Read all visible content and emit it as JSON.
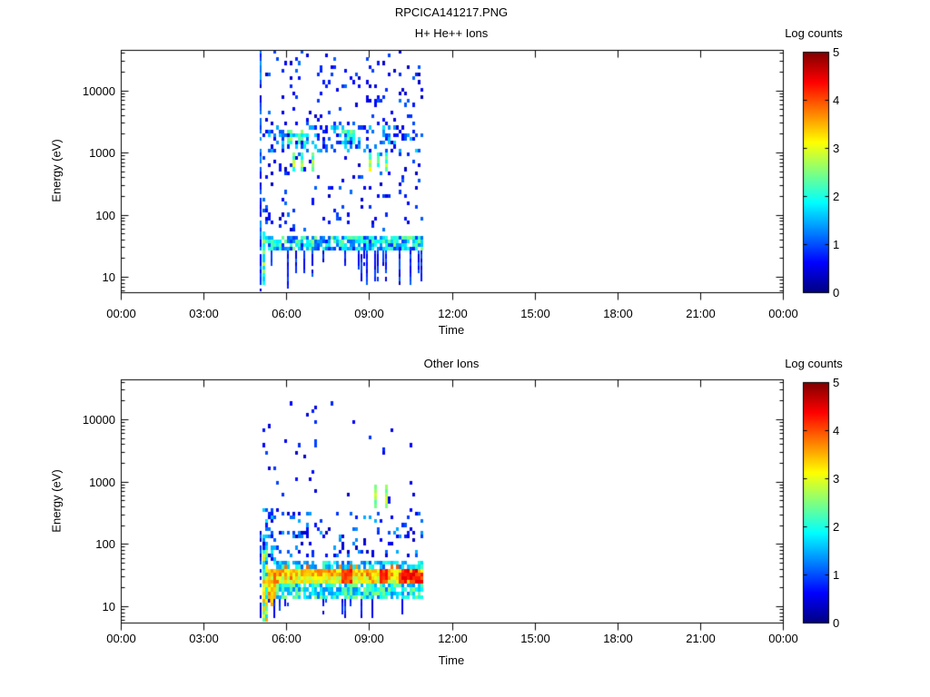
{
  "window_title": "RPCICA141217.PNG",
  "colors": {
    "background": "#ffffff",
    "axis": "#000000",
    "text": "#000000"
  },
  "chart_data": [
    {
      "type": "heatmap",
      "subtype": "energy-time-spectrogram",
      "title": "H+ He++ Ions",
      "xlabel": "Time",
      "ylabel": "Energy (eV)",
      "x_tick_labels": [
        "00:00",
        "03:00",
        "06:00",
        "09:00",
        "12:00",
        "15:00",
        "18:00",
        "21:00",
        "00:00"
      ],
      "x_range_hours": [
        0,
        24
      ],
      "y_scale": "log",
      "y_tick_values": [
        10,
        100,
        1000,
        10000
      ],
      "y_tick_labels": [
        "10",
        "100",
        "1000",
        "10000"
      ],
      "ylog_range": [
        0.75,
        4.65
      ],
      "grid": false,
      "colorbar": {
        "label": "Log counts",
        "tick_labels": [
          "0",
          "1",
          "2",
          "3",
          "4",
          "5"
        ],
        "range": [
          0,
          5
        ],
        "colormap": "jet",
        "position": "right"
      },
      "data_time_extent_hours": [
        5.0,
        10.9
      ],
      "regions": [
        {
          "name": "start-line",
          "type": "vline",
          "t": [
            5.0,
            5.08
          ],
          "logE": [
            0.78,
            4.62
          ],
          "density": 0.8,
          "counts": [
            0.3,
            1.4
          ],
          "w": 2
        },
        {
          "name": "high-scatter",
          "t": [
            5.05,
            10.9
          ],
          "logE": [
            1.7,
            4.62
          ],
          "density": 0.085,
          "counts": [
            0.3,
            1.2
          ]
        },
        {
          "name": "keV-band",
          "t": [
            5.1,
            10.9
          ],
          "logE": [
            3.02,
            3.42
          ],
          "density": 0.3,
          "counts": [
            0.5,
            1.8
          ]
        },
        {
          "name": "keV-bright-1",
          "t": [
            6.0,
            6.7
          ],
          "logE": [
            3.1,
            3.35
          ],
          "density": 0.55,
          "counts": [
            1.6,
            2.8
          ]
        },
        {
          "name": "keV-bright-2",
          "t": [
            7.9,
            8.45
          ],
          "logE": [
            3.1,
            3.35
          ],
          "density": 0.55,
          "counts": [
            1.4,
            2.6
          ]
        },
        {
          "name": "streaks-700eV",
          "type": "columns",
          "times": [
            6.2,
            6.55,
            6.95,
            9.0,
            9.3,
            9.55
          ],
          "logE": [
            2.72,
            3.0
          ],
          "density": 0.95,
          "counts": [
            1.8,
            3.2
          ]
        },
        {
          "name": "low-band",
          "t": [
            5.05,
            10.9
          ],
          "logE": [
            1.4,
            1.68
          ],
          "density": 0.85,
          "counts": [
            0.7,
            2.6
          ]
        },
        {
          "name": "below-band-streaks",
          "type": "vstreaks",
          "n": 22,
          "t": [
            5.1,
            10.9
          ],
          "logE": [
            0.78,
            1.4
          ],
          "density": 0.9,
          "counts": [
            0.3,
            1.1
          ]
        },
        {
          "name": "start-cyan",
          "type": "columns",
          "times": [
            5.1,
            5.18
          ],
          "logE": [
            0.9,
            1.75
          ],
          "density": 0.95,
          "counts": [
            1.6,
            2.9
          ]
        }
      ]
    },
    {
      "type": "heatmap",
      "subtype": "energy-time-spectrogram",
      "title": "Other Ions",
      "xlabel": "Time",
      "ylabel": "Energy (eV)",
      "x_tick_labels": [
        "00:00",
        "03:00",
        "06:00",
        "09:00",
        "12:00",
        "15:00",
        "18:00",
        "21:00",
        "00:00"
      ],
      "x_range_hours": [
        0,
        24
      ],
      "y_scale": "log",
      "y_tick_values": [
        10,
        100,
        1000,
        10000
      ],
      "y_tick_labels": [
        "10",
        "100",
        "1000",
        "10000"
      ],
      "ylog_range": [
        0.75,
        4.65
      ],
      "grid": false,
      "colorbar": {
        "label": "Log counts",
        "tick_labels": [
          "0",
          "1",
          "2",
          "3",
          "4",
          "5"
        ],
        "range": [
          0,
          5
        ],
        "colormap": "jet",
        "position": "right"
      },
      "data_time_extent_hours": [
        5.0,
        10.9
      ],
      "regions": [
        {
          "name": "start-line",
          "type": "vline",
          "t": [
            5.0,
            5.08
          ],
          "logE": [
            0.78,
            2.3
          ],
          "density": 0.75,
          "counts": [
            0.3,
            1.2
          ],
          "w": 2
        },
        {
          "name": "high-sparse-early",
          "t": [
            5.05,
            7.2
          ],
          "logE": [
            2.5,
            4.35
          ],
          "density": 0.035,
          "counts": [
            0.3,
            1.0
          ]
        },
        {
          "name": "high-sparse-late",
          "t": [
            7.2,
            10.6
          ],
          "logE": [
            2.5,
            4.3
          ],
          "density": 0.012,
          "counts": [
            0.3,
            1.0
          ]
        },
        {
          "name": "mid-scatter",
          "t": [
            5.1,
            10.9
          ],
          "logE": [
            1.78,
            2.5
          ],
          "density": 0.17,
          "counts": [
            0.3,
            1.5
          ]
        },
        {
          "name": "upper-col-start",
          "t": [
            5.05,
            5.6
          ],
          "logE": [
            1.7,
            2.6
          ],
          "density": 0.5,
          "counts": [
            0.5,
            2.0
          ]
        },
        {
          "name": "streaks-600eV",
          "type": "columns",
          "times": [
            9.2,
            9.55
          ],
          "logE": [
            2.55,
            2.95
          ],
          "density": 0.95,
          "counts": [
            2.0,
            3.0
          ]
        },
        {
          "name": "band-upper-edge",
          "t": [
            5.15,
            10.9
          ],
          "logE": [
            1.62,
            1.74
          ],
          "density": 0.6,
          "counts": [
            1.0,
            2.2
          ]
        },
        {
          "name": "band-core-upper",
          "t": [
            5.15,
            10.9
          ],
          "logE": [
            1.5,
            1.62
          ],
          "density": 1.0,
          "counts": [
            2.9,
            3.8
          ]
        },
        {
          "name": "band-core-lower",
          "t": [
            5.15,
            10.9
          ],
          "logE": [
            1.36,
            1.5
          ],
          "density": 1.0,
          "counts": [
            2.6,
            3.4
          ]
        },
        {
          "name": "band-orange-flecks",
          "t": [
            5.5,
            10.0
          ],
          "logE": [
            1.36,
            1.64
          ],
          "density": 0.15,
          "counts": [
            3.5,
            4.0
          ]
        },
        {
          "name": "band-red-1",
          "t": [
            7.95,
            8.3
          ],
          "logE": [
            1.36,
            1.58
          ],
          "density": 1.0,
          "counts": [
            3.8,
            4.4
          ]
        },
        {
          "name": "band-red-2",
          "t": [
            9.3,
            9.6
          ],
          "logE": [
            1.36,
            1.58
          ],
          "density": 1.0,
          "counts": [
            3.8,
            4.4
          ]
        },
        {
          "name": "band-red-3",
          "t": [
            10.05,
            10.9
          ],
          "logE": [
            1.36,
            1.58
          ],
          "density": 0.9,
          "counts": [
            3.8,
            4.6
          ]
        },
        {
          "name": "band-lower",
          "t": [
            5.15,
            10.9
          ],
          "logE": [
            1.14,
            1.36
          ],
          "density": 0.85,
          "counts": [
            1.2,
            2.6
          ]
        },
        {
          "name": "start-orange",
          "t": [
            5.1,
            5.55
          ],
          "logE": [
            1.0,
            1.4
          ],
          "density": 0.95,
          "counts": [
            3.0,
            3.9
          ]
        },
        {
          "name": "start-rainbow",
          "t": [
            5.08,
            5.3
          ],
          "logE": [
            0.78,
            1.9
          ],
          "density": 0.9,
          "counts": [
            1.5,
            3.6
          ]
        },
        {
          "name": "below-band-streaks",
          "type": "vstreaks",
          "n": 16,
          "t": [
            5.3,
            10.9
          ],
          "logE": [
            0.78,
            1.14
          ],
          "density": 0.9,
          "counts": [
            0.3,
            1.0
          ]
        }
      ]
    }
  ]
}
